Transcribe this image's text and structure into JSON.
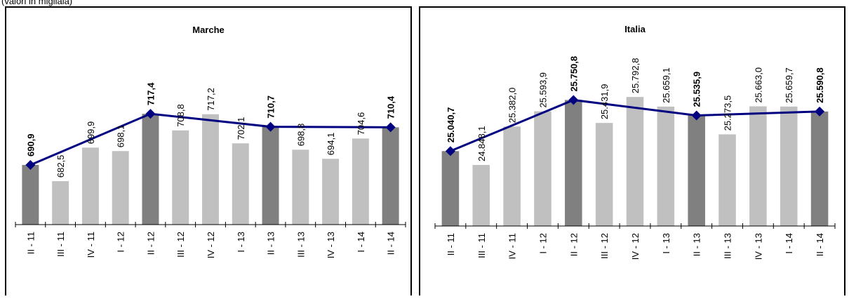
{
  "header": "(valori in migliaia)",
  "chart_data": [
    {
      "type": "bar",
      "title": "Marche",
      "categories": [
        "II - 11",
        "III - 11",
        "IV - 11",
        "I - 12",
        "II - 12",
        "III - 12",
        "IV - 12",
        "I - 13",
        "II - 13",
        "III - 13",
        "IV - 13",
        "I - 14",
        "II - 14"
      ],
      "values": [
        690.9,
        682.5,
        699.9,
        698.1,
        717.4,
        708.8,
        717.2,
        702.1,
        710.7,
        698.8,
        694.1,
        704.6,
        710.4
      ],
      "value_labels": [
        "690,9",
        "682,5",
        "699,9",
        "698,1",
        "717,4",
        "708,8",
        "717,2",
        "702,1",
        "710,7",
        "698,8",
        "694,1",
        "704,6",
        "710,4"
      ],
      "colors": [
        "#808080",
        "#c0c0c0",
        "#c0c0c0",
        "#c0c0c0",
        "#808080",
        "#c0c0c0",
        "#c0c0c0",
        "#c0c0c0",
        "#808080",
        "#c0c0c0",
        "#c0c0c0",
        "#c0c0c0",
        "#808080"
      ],
      "line": {
        "color": "#000080",
        "categories": [
          "II - 11",
          "II - 12",
          "II - 13",
          "II - 14"
        ],
        "values": [
          690.9,
          717.4,
          710.7,
          710.4
        ]
      },
      "ylim": [
        660,
        760
      ]
    },
    {
      "type": "bar",
      "title": "Italia",
      "categories": [
        "II - 11",
        "III - 11",
        "IV - 11",
        "I - 12",
        "II - 12",
        "III - 12",
        "IV - 12",
        "I - 13",
        "II - 13",
        "III - 13",
        "IV - 13",
        "I - 14",
        "II - 14"
      ],
      "values": [
        25040.7,
        24848.1,
        25382.0,
        25593.9,
        25750.8,
        25431.9,
        25792.8,
        25659.1,
        25535.9,
        25273.5,
        25663.0,
        25659.7,
        25590.8
      ],
      "value_labels": [
        "25.040,7",
        "24.848,1",
        "25.382,0",
        "25.593,9",
        "25.750,8",
        "25.431,9",
        "25.792,8",
        "25.659,1",
        "25.535,9",
        "25.273,5",
        "25.663,0",
        "25.659,7",
        "25.590,8"
      ],
      "colors": [
        "#808080",
        "#c0c0c0",
        "#c0c0c0",
        "#c0c0c0",
        "#808080",
        "#c0c0c0",
        "#c0c0c0",
        "#c0c0c0",
        "#808080",
        "#c0c0c0",
        "#c0c0c0",
        "#c0c0c0",
        "#808080"
      ],
      "line": {
        "color": "#000080",
        "categories": [
          "II - 11",
          "II - 12",
          "II - 13",
          "II - 14"
        ],
        "values": [
          25040.7,
          25750.8,
          25535.9,
          25590.8
        ]
      },
      "ylim": [
        24000,
        26750
      ]
    }
  ]
}
